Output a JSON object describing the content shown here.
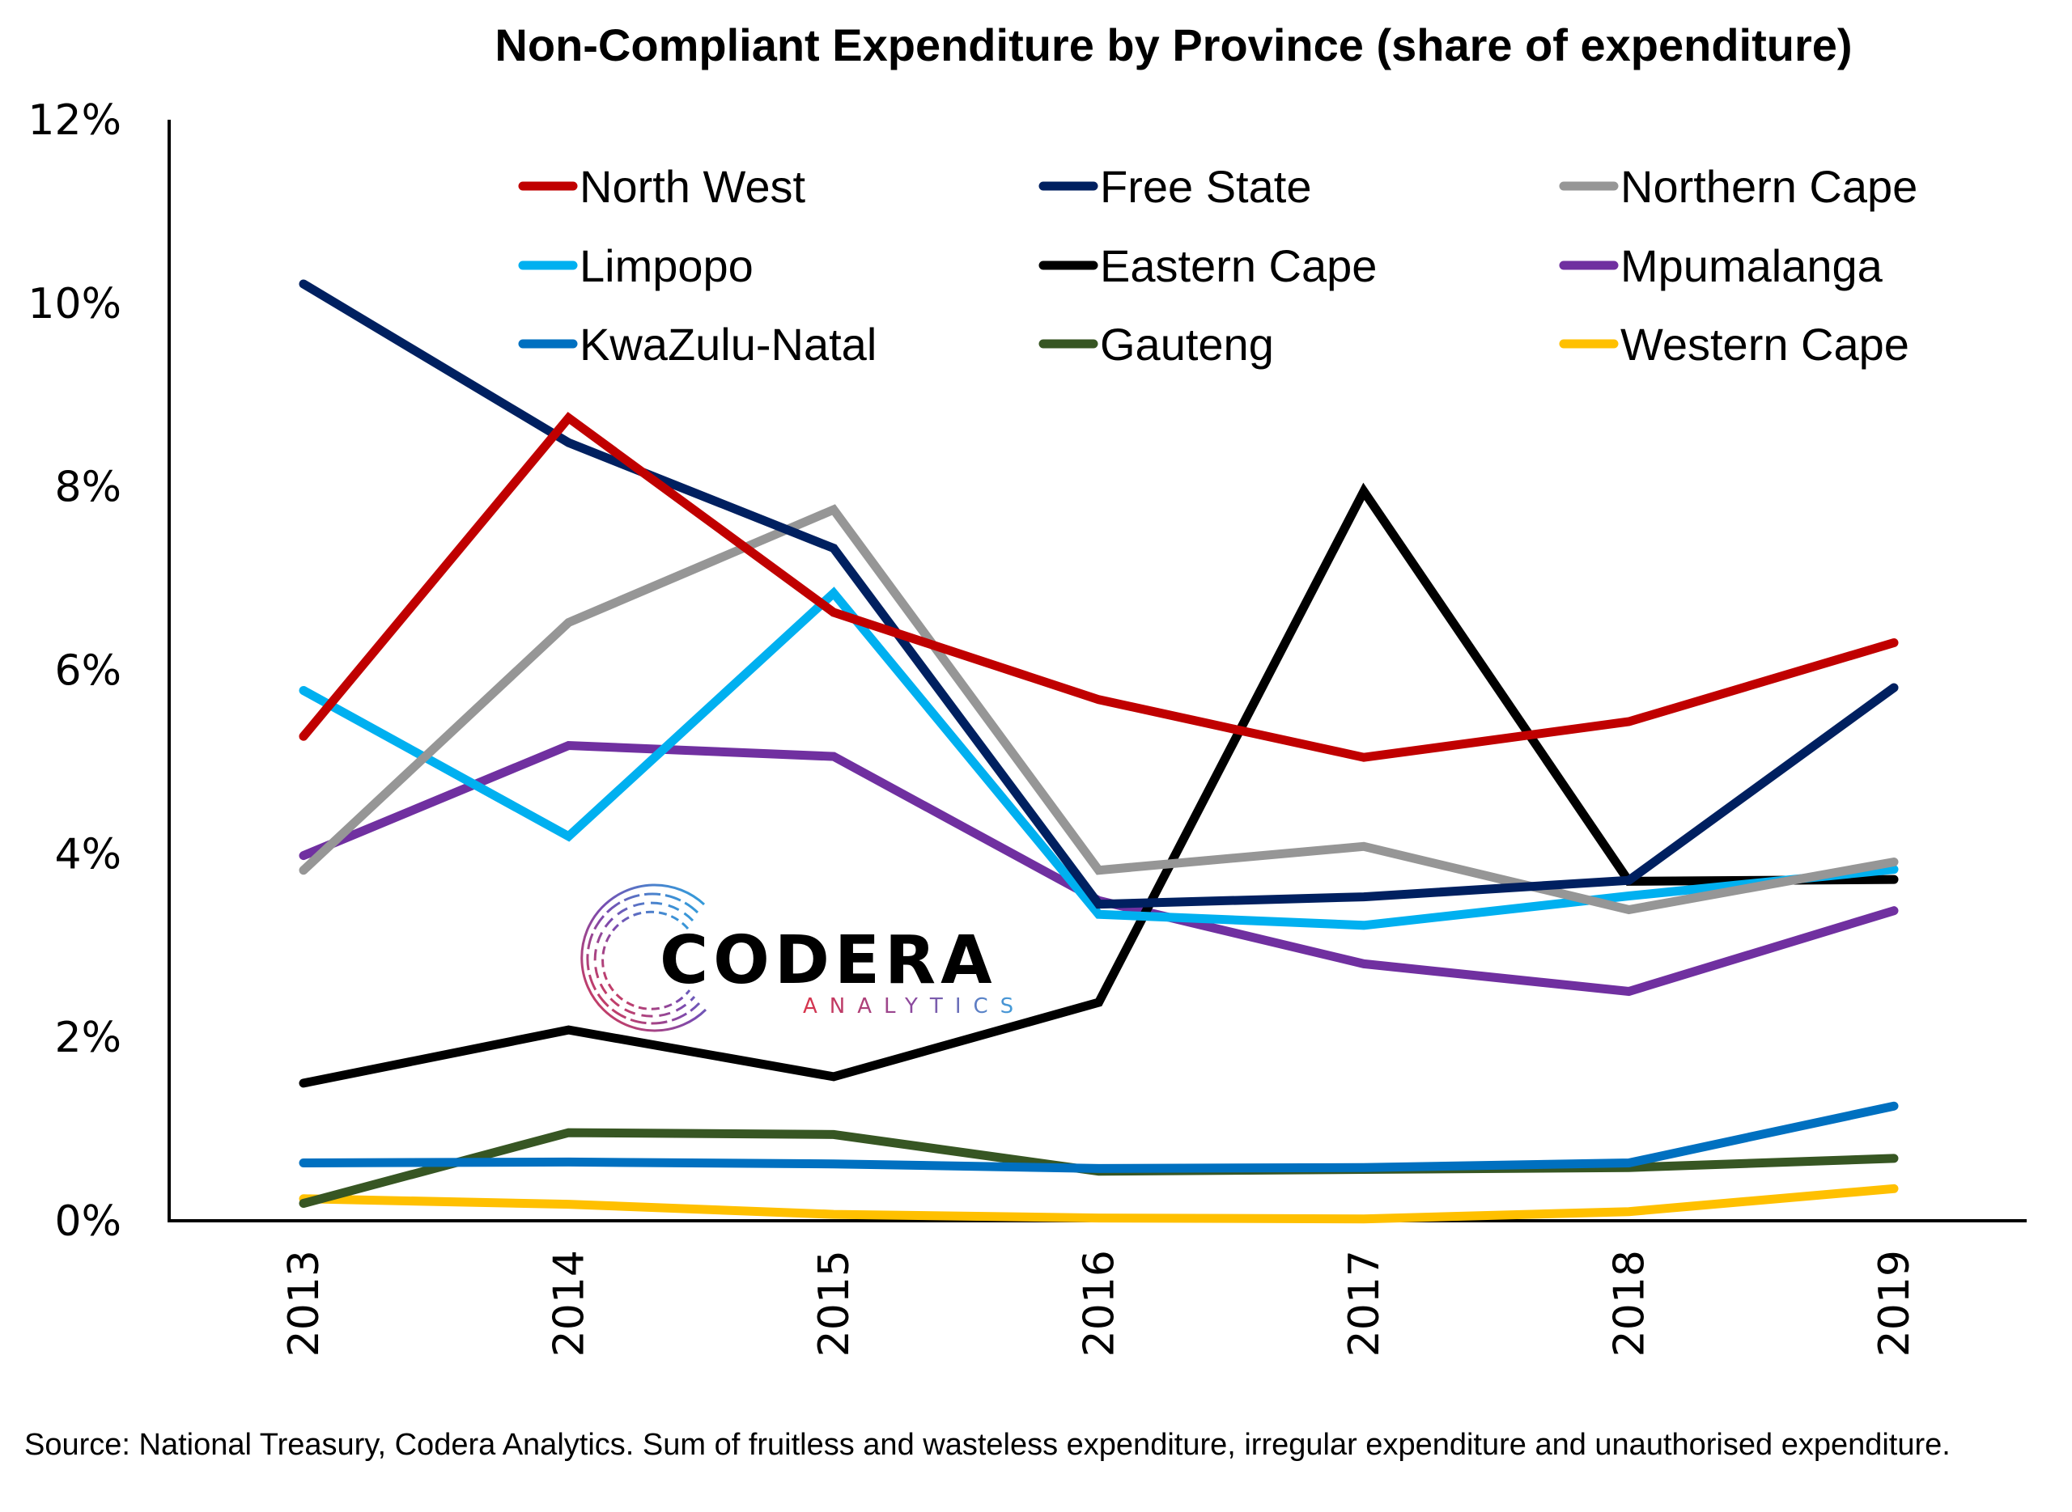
{
  "chart_data": {
    "type": "line",
    "title": "Non-Compliant Expenditure by Province (share of expenditure)",
    "xlabel": "",
    "ylabel": "",
    "x": [
      "2013",
      "2014",
      "2015",
      "2016",
      "2017",
      "2018",
      "2019"
    ],
    "ylim": [
      0,
      12
    ],
    "yticks": [
      0,
      2,
      4,
      6,
      8,
      10,
      12
    ],
    "ytick_labels": [
      "0%",
      "2%",
      "4%",
      "6%",
      "8%",
      "10%",
      "12%"
    ],
    "y_unit": "%",
    "grid": false,
    "legend_position": "top",
    "legend_columns": 3,
    "series": [
      {
        "name": "North West",
        "color": "#C00000",
        "values": [
          5.28,
          8.75,
          6.63,
          5.68,
          5.05,
          5.44,
          6.3
        ]
      },
      {
        "name": "Free State",
        "color": "#002060",
        "values": [
          10.21,
          8.48,
          7.33,
          3.45,
          3.53,
          3.71,
          5.81
        ]
      },
      {
        "name": "Northern Cape",
        "color": "#969696",
        "values": [
          3.82,
          6.52,
          7.75,
          3.82,
          4.08,
          3.39,
          3.91
        ]
      },
      {
        "name": "Limpopo",
        "color": "#00B0F0",
        "values": [
          5.78,
          4.19,
          6.84,
          3.34,
          3.22,
          3.54,
          3.83
        ]
      },
      {
        "name": "Eastern Cape",
        "color": "#000000",
        "values": [
          1.5,
          2.08,
          1.57,
          2.38,
          7.95,
          3.7,
          3.72
        ]
      },
      {
        "name": "Mpumalanga",
        "color": "#7030A0",
        "values": [
          3.98,
          5.18,
          5.06,
          3.49,
          2.8,
          2.5,
          3.38
        ]
      },
      {
        "name": "KwaZulu-Natal",
        "color": "#0070C0",
        "values": [
          0.63,
          0.64,
          0.62,
          0.57,
          0.58,
          0.63,
          1.25
        ]
      },
      {
        "name": "Gauteng",
        "color": "#375623",
        "values": [
          0.19,
          0.96,
          0.94,
          0.54,
          0.56,
          0.58,
          0.68
        ]
      },
      {
        "name": "Western Cape",
        "color": "#FFC000",
        "values": [
          0.24,
          0.18,
          0.07,
          0.03,
          0.02,
          0.1,
          0.35
        ]
      }
    ]
  },
  "logo": {
    "name": "CODERA",
    "subtitle": "ANALYTICS"
  },
  "footnote": "Source: National Treasury, Codera Analytics. Sum of fruitless and wasteless expenditure, irregular expenditure and unauthorised expenditure."
}
